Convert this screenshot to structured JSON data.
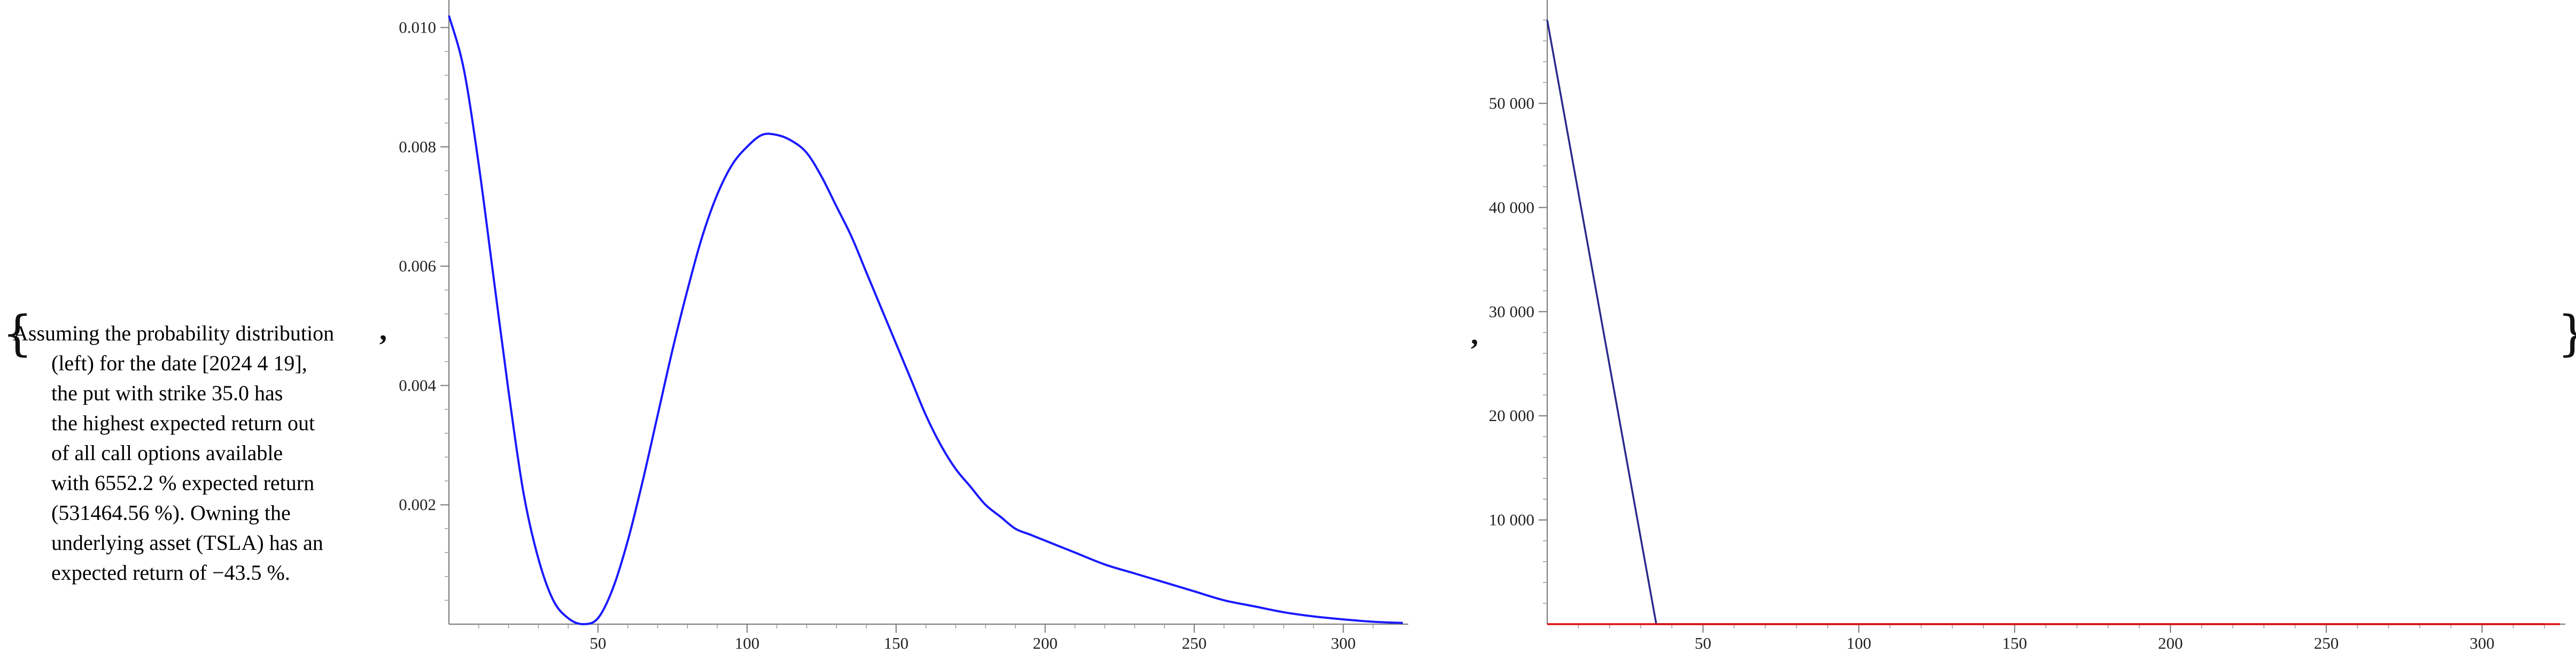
{
  "brackets": {
    "open": "{",
    "close": "}"
  },
  "separators": {
    "first": ",",
    "second": ","
  },
  "description": {
    "lines": [
      "Assuming the probability distribution",
      "(left) for the date [2024 4 19],",
      "the put with strike 35.0 has",
      "the highest expected return out",
      "of all call options available",
      "with 6552.2 % expected return",
      "(531464.56 %). Owning the",
      "underlying asset (TSLA) has an",
      "expected return of −43.5 %."
    ]
  },
  "colors": {
    "density_curve": "#1a1aff",
    "return_curve": "#2a2a8c",
    "zero_line": "#e01010"
  },
  "chart_data": [
    {
      "type": "line",
      "title": "",
      "xlabel": "",
      "ylabel": "",
      "xlim": [
        0,
        320
      ],
      "ylim": [
        0,
        0.0103
      ],
      "x_ticks": [
        50,
        100,
        150,
        200,
        250,
        300
      ],
      "x_tick_labels": [
        "50",
        "100",
        "150",
        "200",
        "250",
        "300"
      ],
      "y_ticks": [
        0.002,
        0.004,
        0.006,
        0.008,
        0.01
      ],
      "y_tick_labels": [
        "0.002",
        "0.004",
        "0.006",
        "0.008",
        "0.010"
      ],
      "grid": false,
      "series": [
        {
          "x": [
            0,
            5,
            10,
            15,
            20,
            25,
            30,
            35,
            40,
            45,
            50,
            55,
            60,
            65,
            70,
            75,
            80,
            85,
            90,
            95,
            100,
            105,
            110,
            115,
            120,
            125,
            130,
            135,
            140,
            145,
            150,
            155,
            160,
            165,
            170,
            175,
            180,
            185,
            190,
            195,
            200,
            205,
            210,
            220,
            230,
            240,
            250,
            260,
            270,
            280,
            290,
            300,
            310,
            320
          ],
          "y": [
            0.0102,
            0.0093,
            0.0077,
            0.0058,
            0.0039,
            0.0022,
            0.0011,
            0.0004,
            0.0001,
            0.0,
            0.0001,
            0.0006,
            0.0014,
            0.0024,
            0.0035,
            0.0046,
            0.0056,
            0.0065,
            0.0072,
            0.0077,
            0.008,
            0.0082,
            0.0082,
            0.0081,
            0.0079,
            0.0075,
            0.007,
            0.0065,
            0.0059,
            0.0053,
            0.0047,
            0.0041,
            0.0035,
            0.003,
            0.0026,
            0.0023,
            0.002,
            0.0018,
            0.0016,
            0.0015,
            0.0014,
            0.0013,
            0.0012,
            0.001,
            0.00085,
            0.0007,
            0.00055,
            0.0004,
            0.0003,
            0.0002,
            0.00013,
            8e-05,
            4e-05,
            2e-05
          ]
        }
      ]
    },
    {
      "type": "line",
      "title": "",
      "xlabel": "",
      "ylabel": "",
      "xlim": [
        0,
        325
      ],
      "ylim": [
        0,
        59000
      ],
      "x_ticks": [
        50,
        100,
        150,
        200,
        250,
        300
      ],
      "x_tick_labels": [
        "50",
        "100",
        "150",
        "200",
        "250",
        "300"
      ],
      "y_ticks": [
        10000,
        20000,
        30000,
        40000,
        50000
      ],
      "y_tick_labels": [
        "10 000",
        "20 000",
        "30 000",
        "40 000",
        "50 000"
      ],
      "grid": false,
      "series": [
        {
          "x": [
            0,
            35,
            320
          ],
          "y": [
            58000,
            0,
            0
          ],
          "color": "#2a2a8c"
        },
        {
          "x": [
            0,
            325
          ],
          "y": [
            0,
            0
          ],
          "color": "#e01010"
        }
      ]
    }
  ]
}
